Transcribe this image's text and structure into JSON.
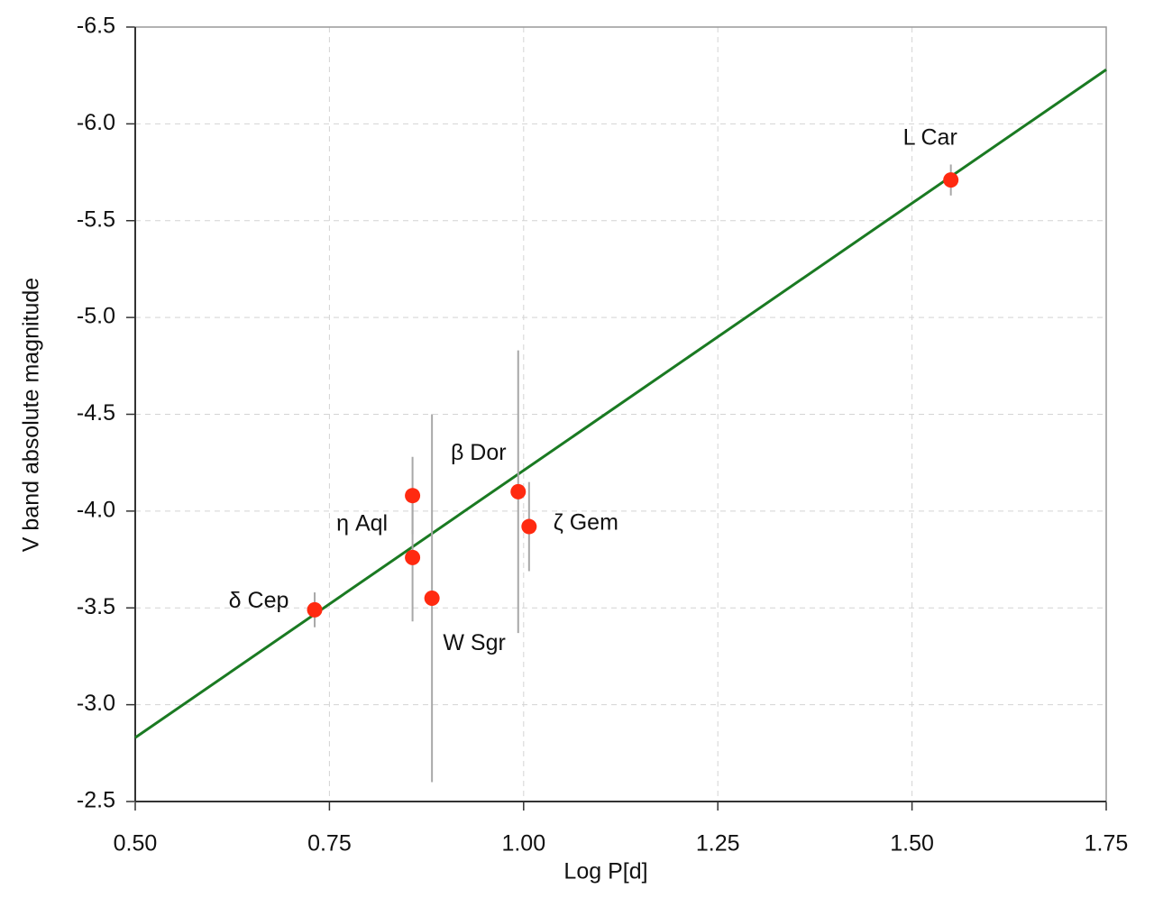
{
  "chart_data": {
    "type": "scatter",
    "x_label": "Log P[d]",
    "y_label": "V band absolute magnitude",
    "x": [
      0.731,
      0.857,
      0.857,
      0.882,
      0.993,
      1.007,
      1.55
    ],
    "values": [
      -3.49,
      -4.08,
      -3.76,
      -3.55,
      -4.1,
      -3.92,
      -5.71
    ],
    "errors": [
      0.09,
      0.2,
      0.33,
      0.95,
      0.73,
      0.23,
      0.08
    ],
    "labels": [
      "δ Cep",
      "η Aql",
      null,
      "W Sgr",
      "β Dor",
      "ζ  Gem",
      "L Car"
    ],
    "color": "#ff2a10",
    "error_color": "#a8a8a8",
    "fit_line": {
      "x": [
        0.5,
        1.75
      ],
      "values": [
        -2.83,
        -6.28
      ],
      "color": "#1a7a22"
    },
    "xlim": [
      0.5,
      1.75
    ],
    "ylim": [
      -2.5,
      -6.5
    ],
    "xticks": [
      {
        "value": 0.5,
        "label": "0.50"
      },
      0.75,
      {
        "value": 1,
        "label": "1.00"
      },
      1.25,
      {
        "value": 1.5,
        "label": "1.50"
      },
      1.75
    ],
    "yticks": [
      -6.5,
      {
        "value": -6,
        "label": "-6.0"
      },
      -5.5,
      {
        "value": -5,
        "label": "-5.0"
      },
      -4.5,
      {
        "value": -4,
        "label": "-4.0"
      },
      -3.5,
      {
        "value": -3,
        "label": "-3.0"
      },
      -2.5
    ],
    "grid": true
  }
}
